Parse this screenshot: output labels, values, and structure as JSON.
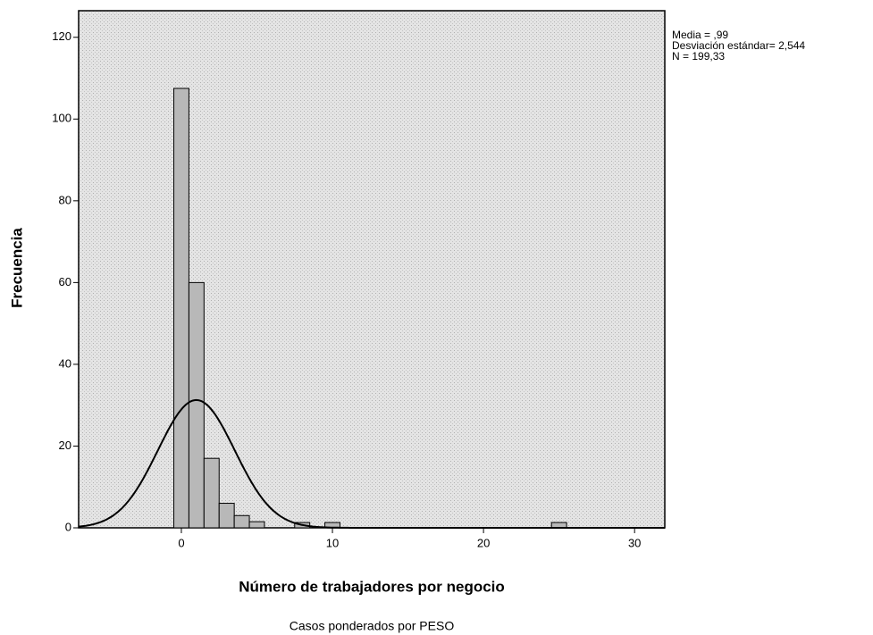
{
  "chart_data": {
    "type": "histogram",
    "xlabel": "Número de trabajadores por negocio",
    "ylabel": "Frecuencia",
    "footnote": "Casos ponderados por PESO",
    "bins": [
      -0.5,
      0.5,
      1.5,
      2.5,
      3.5,
      4.5,
      5.5,
      6.5,
      7.5,
      8.5,
      9.5,
      10.5,
      11.5,
      12.5,
      13.5,
      14.5,
      15.5,
      16.5,
      17.5,
      18.5,
      19.5,
      20.5,
      21.5,
      22.5,
      23.5,
      24.5,
      25.5
    ],
    "counts": [
      107.5,
      60,
      17,
      6,
      3,
      1.5,
      0,
      0,
      1.3,
      0,
      1.3,
      0,
      0,
      0,
      0,
      0,
      0,
      0,
      0,
      0,
      0,
      0,
      0,
      0,
      0,
      1.3
    ],
    "color": "#b8b8b8",
    "stats": [
      {
        "value": 0.99,
        "label": "Media = ,99"
      },
      {
        "value": 2.544,
        "label": "Desviación estándar= 2,544"
      },
      {
        "value": 199.33,
        "label": "N = 199,33"
      }
    ],
    "xlim": [
      -6.8,
      32
    ],
    "ylim": [
      0,
      126.5
    ],
    "xticks": [
      0,
      10,
      20,
      30
    ],
    "yticks": [
      0,
      20,
      40,
      60,
      80,
      100,
      120
    ]
  }
}
